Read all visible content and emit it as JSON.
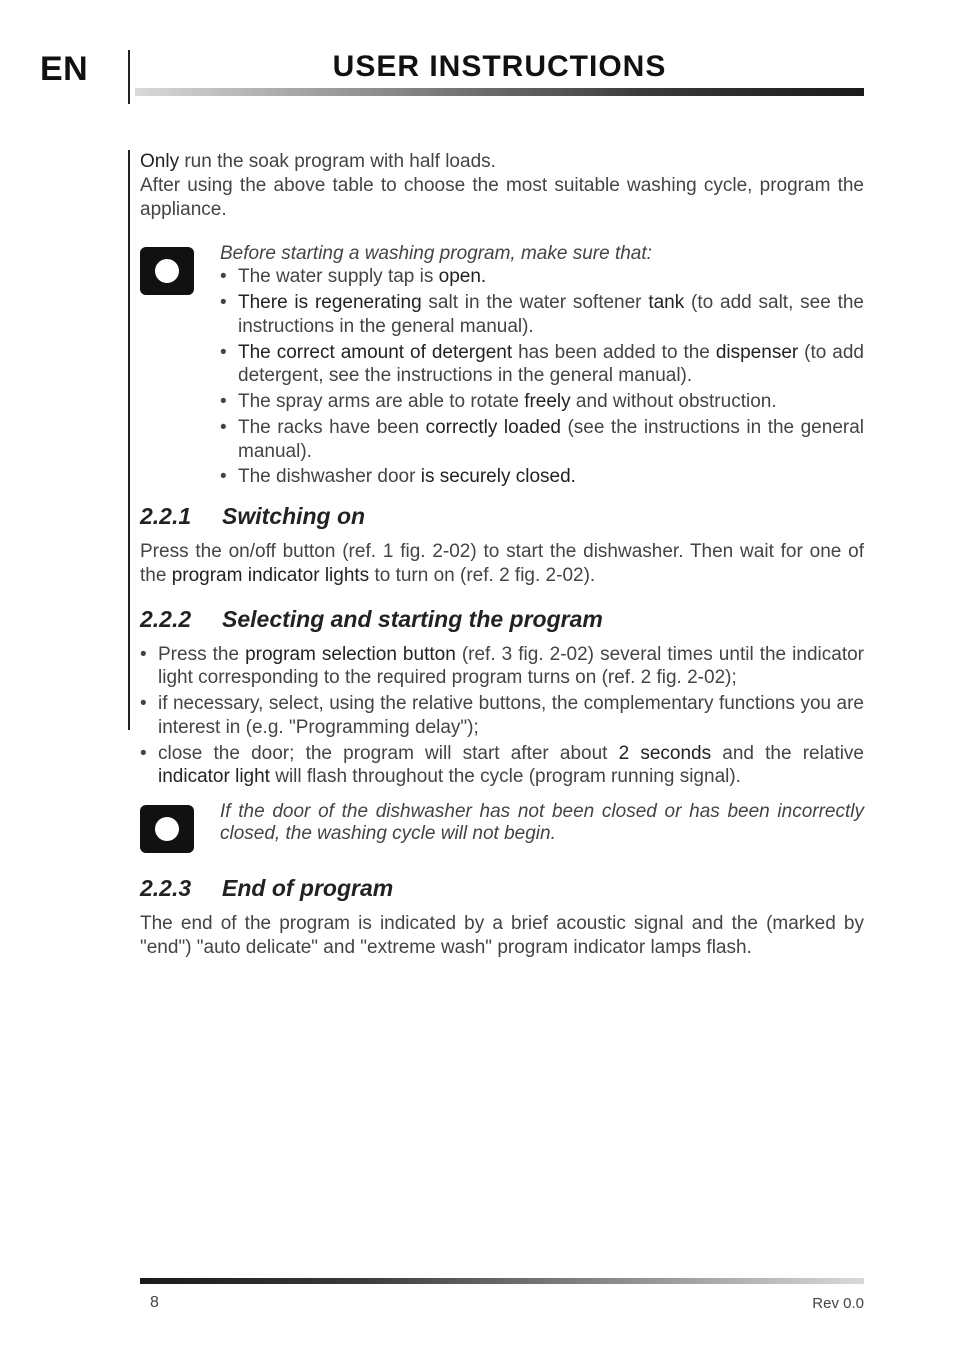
{
  "header": {
    "lang": "EN",
    "title": "USER INSTRUCTIONS"
  },
  "intro": {
    "line1_pre": "Only",
    "line1_post": " run the soak program with half loads.",
    "line2": "After using the above table to choose the most suitable washing cycle, program the appliance."
  },
  "note1": {
    "lead": "Before starting a washing program, make sure that:",
    "items": [
      {
        "html": "The water supply tap is <b>open.</b>"
      },
      {
        "html": "<b>There is regenerating</b> salt in the water softener <b>tank</b> (to add salt, see the instructions in the general manual)."
      },
      {
        "html": "<b>The correct amount of detergent</b> has been added to the <b>dispenser</b> (to add detergent, see the instructions in the general manual)."
      },
      {
        "html": "The spray arms are able to rotate <b>freely</b> and without obstruction."
      },
      {
        "html": "The racks have been <b>correctly loaded</b> (see the instructions in the general manual)."
      },
      {
        "html": "The dishwasher door <b>is securely closed.</b>"
      }
    ]
  },
  "s221": {
    "num": "2.2.1",
    "title": "Switching on",
    "body_pre": "Press the on/off button (ref. 1 fig. 2-02) to start the dishwasher. Then wait for one of the ",
    "body_bold": "program indicator lights",
    "body_post": " to turn on (ref. 2 fig. 2-02)."
  },
  "s222": {
    "num": "2.2.2",
    "title": "Selecting and starting the program",
    "items": [
      {
        "html": "Press the <b>program selection button</b> (ref. 3 fig. 2-02) several times until the indicator light corresponding to the required program turns on (ref. 2 fig. 2-02);"
      },
      {
        "html": "if necessary, select, using the relative buttons, the complementary functions you are interest in (e.g. \"Programming delay\");"
      },
      {
        "html": "close the door; the program will start after about <b>2 seconds</b> and the relative <b>indicator light</b> will flash throughout the cycle (program running signal)."
      }
    ]
  },
  "note2": {
    "text": "If the door of the dishwasher has not been closed or has been incorrectly closed, the washing cycle will not begin."
  },
  "s223": {
    "num": "2.2.3",
    "title": "End of program",
    "body": "The end of the program is indicated by a brief acoustic signal and the (marked by \"end\") \"auto delicate\" and \"extreme wash\" program indicator lamps flash."
  },
  "footer": {
    "page": "8",
    "rev": "Rev 0.0"
  },
  "colors": {
    "text": "#444444",
    "strong": "#222222"
  }
}
